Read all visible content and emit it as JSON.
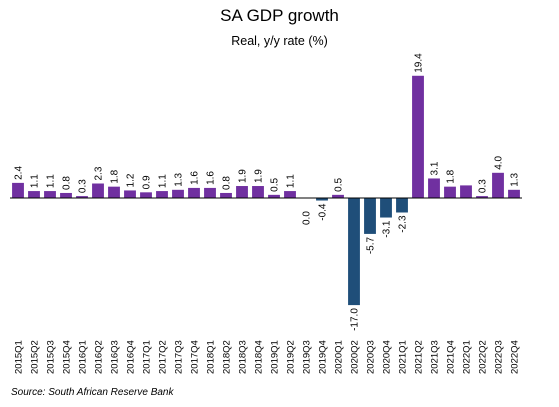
{
  "title": "SA GDP growth",
  "subtitle": "Real, y/y rate (%)",
  "source": "Source: South African Reserve Bank",
  "colors": {
    "positive": "#7030a0",
    "negative": "#1f4e79",
    "axis": "#000000"
  },
  "chart_data": {
    "type": "bar",
    "title": "SA GDP growth",
    "subtitle": "Real, y/y rate (%)",
    "xlabel": "",
    "ylabel": "",
    "grid": false,
    "legend": "none",
    "ylim": [
      -17.0,
      19.4
    ],
    "categories": [
      "2015Q1",
      "2015Q2",
      "2015Q3",
      "2015Q4",
      "2016Q1",
      "2016Q2",
      "2016Q3",
      "2016Q4",
      "2017Q1",
      "2017Q2",
      "2017Q3",
      "2017Q4",
      "2018Q1",
      "2018Q2",
      "2018Q3",
      "2018Q4",
      "2019Q1",
      "2019Q2",
      "2019Q3",
      "2019Q4",
      "2020Q1",
      "2020Q2",
      "2020Q3",
      "2020Q4",
      "2021Q1",
      "2021Q2",
      "2021Q3",
      "2021Q4",
      "2022Q1",
      "2022Q2",
      "2022Q3",
      "2022Q4"
    ],
    "values": [
      2.4,
      1.1,
      1.1,
      0.8,
      0.3,
      2.3,
      1.8,
      1.2,
      0.9,
      1.1,
      1.3,
      1.6,
      1.6,
      0.8,
      1.9,
      1.9,
      0.5,
      1.1,
      0.0,
      -0.4,
      0.5,
      -17.0,
      -5.7,
      -3.1,
      -2.3,
      19.4,
      3.1,
      1.8,
      2.0,
      0.3,
      4.0,
      1.3
    ],
    "data_labels": [
      "2.4",
      "1.1",
      "1.1",
      "0.8",
      "0.3",
      "2.3",
      "1.8",
      "1.2",
      "0.9",
      "1.1",
      "1.3",
      "1.6",
      "1.6",
      "0.8",
      "1.9",
      "1.9",
      "0.5",
      "1.1",
      "0.0",
      "-0.4",
      "0.5",
      "-17.0",
      "-5.7",
      "-3.1",
      "-2.3",
      "19.4",
      "3.1",
      "1.8",
      "",
      "0.3",
      "4.0",
      "1.3"
    ]
  }
}
